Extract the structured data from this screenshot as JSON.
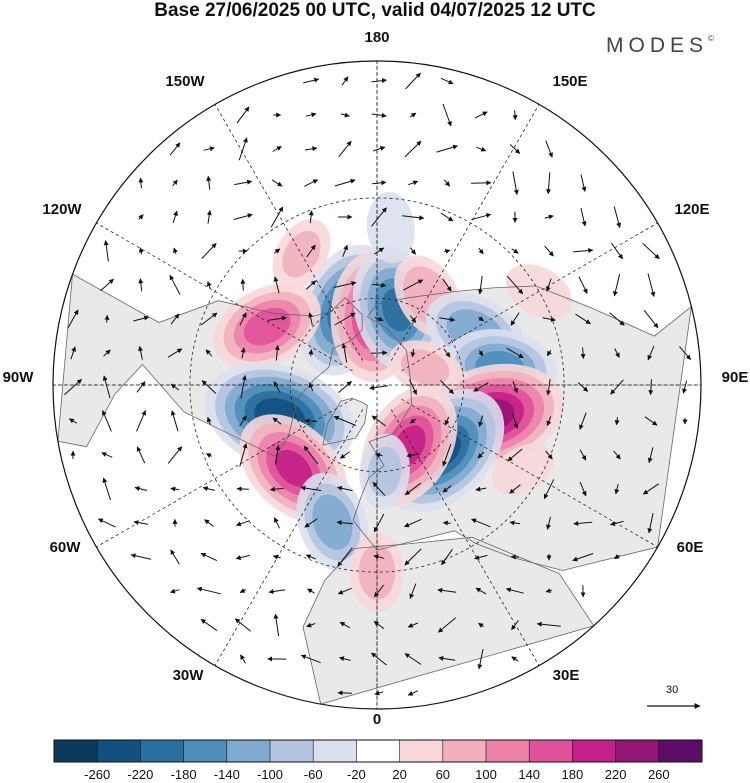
{
  "title": "Base 27/06/2025 00 UTC, valid 04/07/2025 12 UTC",
  "brand": "MODES",
  "brand_mark": "©",
  "longitude_labels": [
    "180",
    "150E",
    "120E",
    "90E",
    "60E",
    "30E",
    "0",
    "30W",
    "60W",
    "90W",
    "120W",
    "150W"
  ],
  "reference_vector": {
    "value": "30"
  },
  "colorbar": {
    "ticks": [
      "-260",
      "-220",
      "-180",
      "-140",
      "-100",
      "-60",
      "-20",
      "20",
      "60",
      "100",
      "140",
      "180",
      "220",
      "260"
    ],
    "colors": [
      "#0b3a5c",
      "#12507f",
      "#2b6f9f",
      "#4d8ebb",
      "#7fa9cf",
      "#b2c4df",
      "#dcdfed",
      "#ffffff",
      "#f7d7d9",
      "#f2b0bd",
      "#ec82a8",
      "#e0519a",
      "#c5208a",
      "#941575",
      "#5c0e66"
    ]
  },
  "anomalies": [
    {
      "lat": 62,
      "lon": -158,
      "value": -200
    },
    {
      "lat": 66,
      "lon": -178,
      "value": 190
    },
    {
      "lat": 63,
      "lon": 165,
      "value": -180
    },
    {
      "lat": 55,
      "lon": 150,
      "value": 90
    },
    {
      "lat": 52,
      "lon": 118,
      "value": -130
    },
    {
      "lat": 48,
      "lon": 98,
      "value": -150
    },
    {
      "lat": 50,
      "lon": 75,
      "value": 230
    },
    {
      "lat": 58,
      "lon": 45,
      "value": -220
    },
    {
      "lat": 66,
      "lon": 28,
      "value": 180
    },
    {
      "lat": 48,
      "lon": -118,
      "value": 150
    },
    {
      "lat": 55,
      "lon": -72,
      "value": -240
    },
    {
      "lat": 50,
      "lon": -45,
      "value": 180
    },
    {
      "lat": 42,
      "lon": -18,
      "value": -120
    },
    {
      "lat": 30,
      "lon": 0,
      "value": 70
    },
    {
      "lat": 40,
      "lon": -150,
      "value": 60
    },
    {
      "lat": 30,
      "lon": 120,
      "value": 50
    },
    {
      "lat": 72,
      "lon": 110,
      "value": 60
    },
    {
      "lat": 35,
      "lon": 60,
      "value": 40
    },
    {
      "lat": 60,
      "lon": 5,
      "value": -60
    },
    {
      "lat": 38,
      "lon": 175,
      "value": -50
    }
  ]
}
